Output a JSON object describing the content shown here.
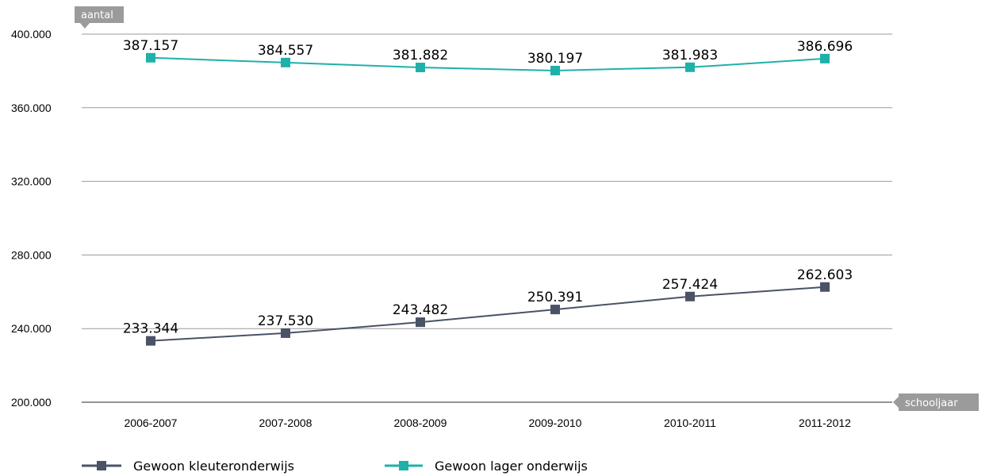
{
  "chart_data": {
    "type": "line",
    "ylabel": "aantal",
    "xlabel": "schooljaar",
    "categories": [
      "2006-2007",
      "2007-2008",
      "2008-2009",
      "2009-2010",
      "2010-2011",
      "2011-2012"
    ],
    "y_ticks": [
      "200.000",
      "240.000",
      "280.000",
      "320.000",
      "360.000",
      "400.000"
    ],
    "ylim": [
      200000,
      400000
    ],
    "grid": true,
    "legend_position": "bottom",
    "series": [
      {
        "name": "Gewoon kleuteronderwijs",
        "color": "#4a5266",
        "values": [
          233344,
          237530,
          243482,
          250391,
          257424,
          262603
        ],
        "labels": [
          "233.344",
          "237.530",
          "243.482",
          "250.391",
          "257.424",
          "262.603"
        ]
      },
      {
        "name": "Gewoon lager onderwijs",
        "color": "#1fb0aa",
        "values": [
          387157,
          384557,
          381882,
          380197,
          381983,
          386696
        ],
        "labels": [
          "387.157",
          "384.557",
          "381.882",
          "380.197",
          "381.983",
          "386.696"
        ]
      }
    ]
  }
}
